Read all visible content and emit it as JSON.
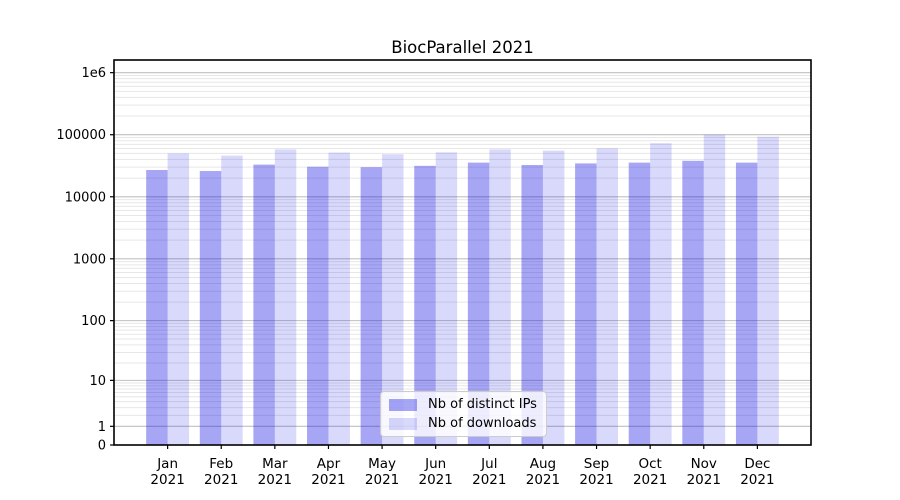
{
  "chart_data": {
    "type": "bar",
    "title": "BiocParallel 2021",
    "categories": [
      "Jan 2021",
      "Feb 2021",
      "Mar 2021",
      "Apr 2021",
      "May 2021",
      "Jun 2021",
      "Jul 2021",
      "Aug 2021",
      "Sep 2021",
      "Oct 2021",
      "Nov 2021",
      "Dec 2021"
    ],
    "series": [
      {
        "name": "Nb of distinct IPs",
        "color": "rgba(0,0,225,0.35)",
        "values": [
          27000,
          26000,
          33000,
          30500,
          30000,
          31500,
          35500,
          32500,
          34500,
          35500,
          38000,
          35500
        ]
      },
      {
        "name": "Nb of downloads",
        "color": "rgba(0,0,225,0.15)",
        "values": [
          50000,
          46000,
          58000,
          51500,
          48500,
          52000,
          58000,
          55500,
          60500,
          73000,
          100000,
          93000
        ]
      }
    ],
    "yscale": "log10(1+v)",
    "ylim": [
      0,
      1600000
    ],
    "yticks": [
      0,
      1,
      10,
      100,
      1000,
      10000,
      100000,
      1000000
    ],
    "ytick_labels": [
      "0",
      "1",
      "10",
      "100",
      "1000",
      "10000",
      "100000",
      "1e6"
    ],
    "grid": "horizontal major + minor",
    "legend_position": "inside lower center",
    "colors": {
      "bar_distinct_ips": "rgba(0,0,225,0.35)",
      "bar_downloads": "rgba(0,0,225,0.15)",
      "grid_major": "#c0c0c0",
      "grid_minor": "#e7e7e7",
      "frame": "#000000",
      "text": "#000000",
      "background": "#ffffff"
    }
  }
}
